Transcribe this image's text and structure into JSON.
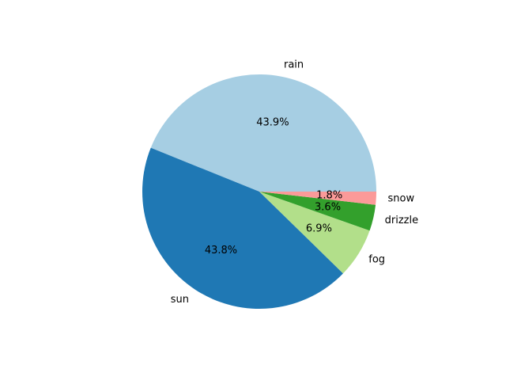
{
  "chart_data": {
    "type": "pie",
    "title": "",
    "categories": [
      "rain",
      "sun",
      "fog",
      "drizzle",
      "snow"
    ],
    "values": [
      43.9,
      43.8,
      6.9,
      3.6,
      1.8
    ],
    "percent_labels": [
      "43.9%",
      "43.8%",
      "6.9%",
      "3.6%",
      "1.8%"
    ],
    "colors": [
      "#a6cee3",
      "#1f78b4",
      "#b2df8a",
      "#33a02c",
      "#fb9a99"
    ],
    "start_angle_deg": 0,
    "direction": "counterclockwise",
    "legend": "none"
  }
}
